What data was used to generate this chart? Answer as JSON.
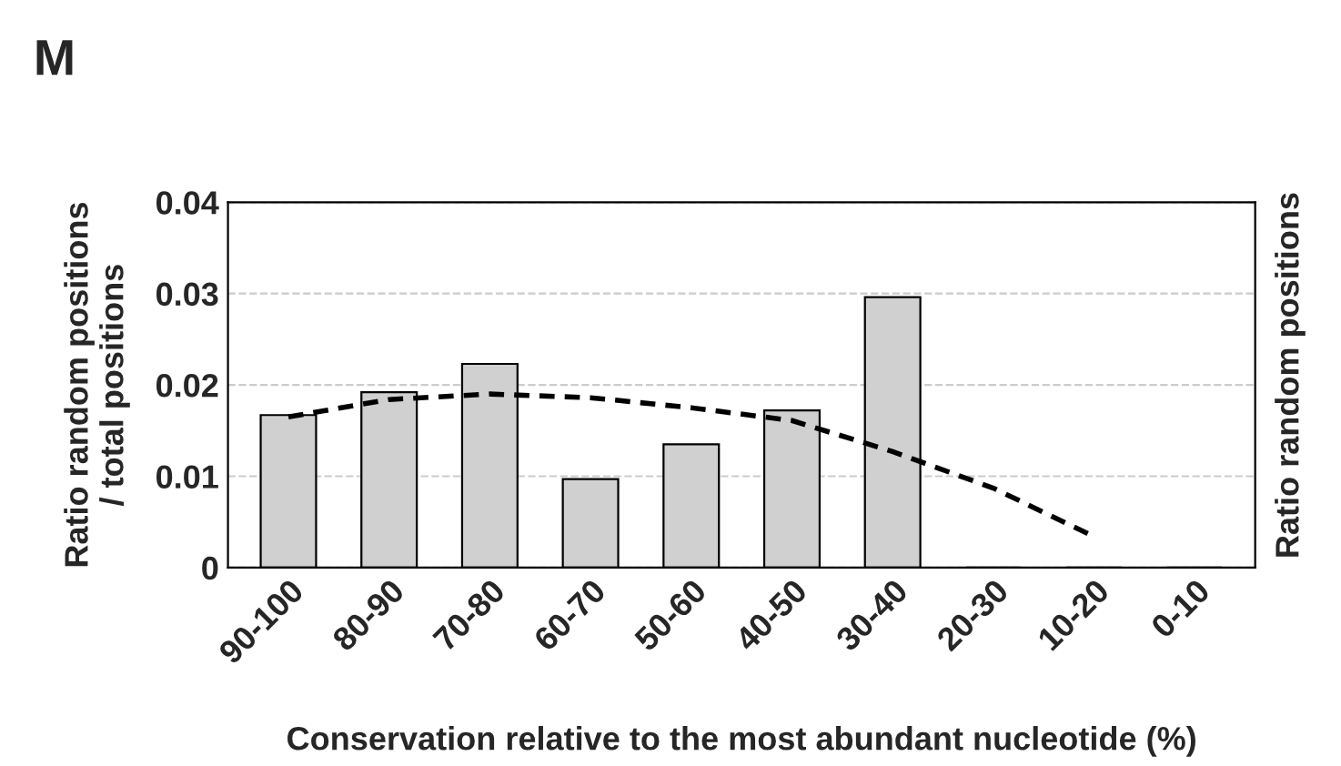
{
  "chart_data": {
    "type": "bar",
    "categories": [
      "90-100",
      "80-90",
      "70-80",
      "60-70",
      "50-60",
      "40-50",
      "30-40",
      "20-30",
      "10-20",
      "0-10"
    ],
    "series": [
      {
        "color": "#d0d0d0",
        "values": [
          0.0167,
          0.0192,
          0.0223,
          0.0097,
          0.0135,
          0.0172,
          0.0296,
          0,
          0,
          0
        ]
      },
      {
        "type": "line",
        "color": "#000000",
        "line_style": "dashed",
        "values": [
          0.0165,
          0.0184,
          0.019,
          0.0186,
          0.0175,
          0.0161,
          0.0127,
          0.0087,
          0.0034,
          null
        ]
      }
    ],
    "xlabel": "Conservation relative to the most abundant nucleotide (%)",
    "ylabel": "Ratio random positions\n/ total positions",
    "title": "M",
    "annotations": [
      "Ratio random positions"
    ],
    "ylim": [
      0,
      0.04
    ],
    "yticks": [
      0,
      0.01,
      0.02,
      0.03,
      0.04
    ],
    "grid": "y",
    "legend": false
  }
}
